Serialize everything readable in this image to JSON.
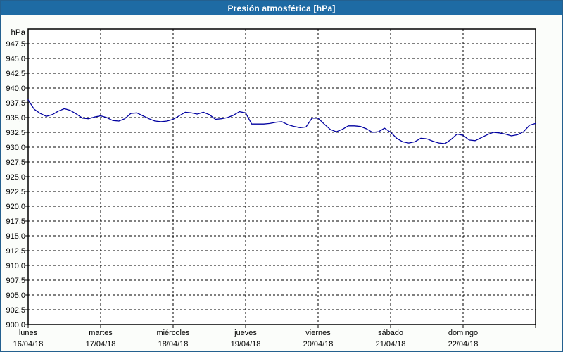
{
  "window": {
    "title": "Presión atmosférica [hPa]"
  },
  "colors": {
    "titlebar_bg": "#1e6ba4",
    "titlebar_text": "#ffffff",
    "frame_border": "#24608f",
    "background": "#fbfdfa",
    "plot_bg": "#ffffff",
    "grid": "#000000",
    "axis": "#000000",
    "tick_text": "#000000",
    "line": "#0000a0"
  },
  "chart_data": {
    "type": "line",
    "title": "Presión atmosférica [hPa]",
    "y_unit": "hPa",
    "ylim": [
      900,
      950
    ],
    "ytick_step": 2.5,
    "ytick_values": [
      947.5,
      945.0,
      942.5,
      940.0,
      937.5,
      935.0,
      932.5,
      930.0,
      927.5,
      925.0,
      922.5,
      920.0,
      917.5,
      915.0,
      912.5,
      910.0,
      907.5,
      905.0,
      902.5,
      900.0
    ],
    "ytick_labels": [
      "947,5",
      "945,0",
      "942,5",
      "940,0",
      "937,5",
      "935,0",
      "932,5",
      "930,0",
      "927,5",
      "925,0",
      "922,5",
      "920,0",
      "917,5",
      "915,0",
      "912,5",
      "910,0",
      "907,5",
      "905,0",
      "902,5",
      "900,0"
    ],
    "grid": true,
    "legend": "none",
    "days": [
      {
        "name": "lunes",
        "date": "16/04/18"
      },
      {
        "name": "martes",
        "date": "17/04/18"
      },
      {
        "name": "miércoles",
        "date": "18/04/18"
      },
      {
        "name": "jueves",
        "date": "19/04/18"
      },
      {
        "name": "viernes",
        "date": "20/04/18"
      },
      {
        "name": "sábado",
        "date": "21/04/18"
      },
      {
        "name": "domingo",
        "date": "22/04/18"
      }
    ],
    "samples_per_day": 12,
    "series": [
      {
        "name": "Presión atmosférica",
        "color": "#0000a0",
        "values": [
          938.0,
          936.4,
          935.7,
          935.2,
          935.5,
          936.1,
          936.5,
          936.2,
          935.6,
          934.9,
          934.8,
          935.1,
          935.3,
          935.0,
          934.5,
          934.4,
          934.8,
          935.7,
          935.8,
          935.3,
          934.8,
          934.4,
          934.3,
          934.4,
          934.7,
          935.3,
          935.9,
          935.8,
          935.6,
          935.9,
          935.5,
          934.7,
          934.8,
          935.0,
          935.4,
          936.0,
          935.8,
          933.9,
          933.9,
          933.9,
          934.0,
          934.2,
          934.3,
          933.8,
          933.5,
          933.3,
          933.4,
          934.9,
          934.9,
          933.9,
          933.0,
          932.6,
          933.0,
          933.6,
          933.6,
          933.5,
          933.1,
          932.5,
          932.6,
          933.2,
          932.5,
          931.5,
          930.9,
          930.7,
          930.9,
          931.5,
          931.4,
          931.0,
          930.7,
          930.6,
          931.3,
          932.2,
          932.0,
          931.2,
          931.1,
          931.6,
          932.1,
          932.5,
          932.4,
          932.2,
          931.9,
          932.1,
          932.6,
          933.7,
          934.0
        ]
      }
    ]
  }
}
